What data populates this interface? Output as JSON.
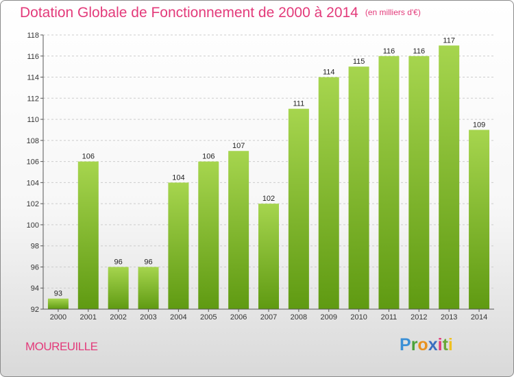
{
  "header": {
    "title": "Dotation Globale de Fonctionnement de 2000 à 2014",
    "unit": "(en milliers d'€)"
  },
  "footer": {
    "commune": "MOUREUILLE",
    "logo": {
      "p": "P",
      "r": "r",
      "o": "o",
      "x": "x",
      "i1": "i",
      "t": "t",
      "i2": "i"
    }
  },
  "colors": {
    "title": "#e33a7a",
    "bar_top": "#a6d54e",
    "bar_bottom": "#5f9a12"
  },
  "chart_data": {
    "type": "bar",
    "title": "Dotation Globale de Fonctionnement de 2000 à 2014",
    "subtitle": "(en milliers d'€)",
    "xlabel": "",
    "ylabel": "",
    "categories": [
      "2000",
      "2001",
      "2002",
      "2003",
      "2004",
      "2005",
      "2006",
      "2007",
      "2008",
      "2009",
      "2010",
      "2011",
      "2012",
      "2013",
      "2014"
    ],
    "values": [
      93,
      106,
      96,
      96,
      104,
      106,
      107,
      102,
      111,
      114,
      115,
      116,
      116,
      117,
      109
    ],
    "ylim": [
      92,
      118
    ],
    "yticks": [
      92,
      94,
      96,
      98,
      100,
      102,
      104,
      106,
      108,
      110,
      112,
      114,
      116,
      118
    ],
    "grid": true,
    "legend": "none"
  }
}
